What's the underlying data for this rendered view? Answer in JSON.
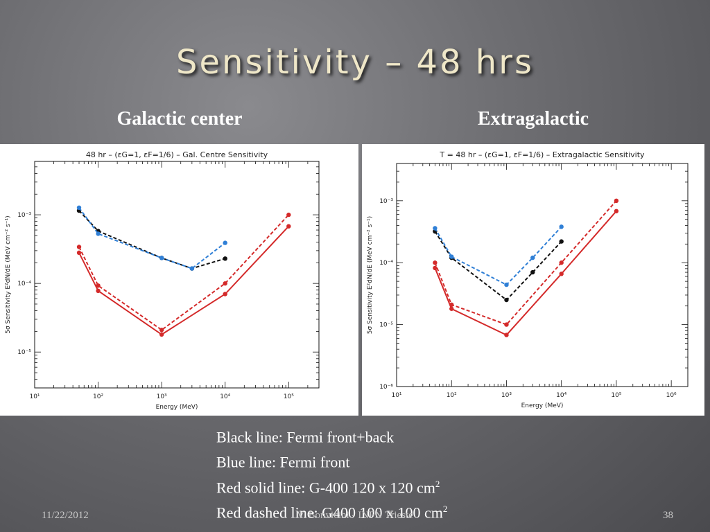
{
  "slide": {
    "title": "Sensitivity – 48 hrs",
    "left_heading": "Galactic center",
    "right_heading": "Extragalactic",
    "legend_lines": [
      {
        "text": "Black line: Fermi front+back",
        "sup": ""
      },
      {
        "text": "Blue line: Fermi front",
        "sup": ""
      },
      {
        "text": "Red solid line: G-400 120 x 120 cm",
        "sup": "2"
      },
      {
        "text": "Red dashed line: G400 100 x 100 cm",
        "sup": "2"
      }
    ],
    "footer": {
      "date": "11/22/2012",
      "author": "V. Bonvicini - INFN Trieste",
      "page": "38"
    }
  },
  "colors": {
    "black": "#111111",
    "blue": "#2f7fd6",
    "red": "#d42a2a"
  },
  "chart_data": [
    {
      "type": "line",
      "title": "48 hr – (εG=1, εF=1/6) – Gal. Centre Sensitivity",
      "xlabel": "Energy (MeV)",
      "ylabel": "5σ Sensitivity E²dN/dE (MeV cm⁻² s⁻¹)",
      "xscale": "log",
      "yscale": "log",
      "xlim": [
        10,
        300000
      ],
      "ylim": [
        3e-06,
        0.006
      ],
      "xticks": [
        {
          "v": 10,
          "label": "10¹"
        },
        {
          "v": 100,
          "label": "10²"
        },
        {
          "v": 1000,
          "label": "10³"
        },
        {
          "v": 10000,
          "label": "10⁴"
        },
        {
          "v": 100000,
          "label": "10⁵"
        }
      ],
      "yticks": [
        {
          "v": 1e-05,
          "label": "10⁻⁵"
        },
        {
          "v": 0.0001,
          "label": "10⁻⁴"
        },
        {
          "v": 0.001,
          "label": "10⁻³"
        }
      ],
      "series": [
        {
          "color": "black",
          "dash": true,
          "x": [
            50,
            100,
            1000,
            3000,
            10000
          ],
          "y": [
            0.00115,
            0.00058,
            0.000235,
            0.000165,
            0.00023
          ]
        },
        {
          "color": "blue",
          "dash": true,
          "x": [
            50,
            100,
            1000,
            3000,
            10000
          ],
          "y": [
            0.00127,
            0.00053,
            0.000235,
            0.000165,
            0.00039
          ]
        },
        {
          "color": "red",
          "dash": false,
          "x": [
            50,
            100,
            1000,
            10000,
            100000
          ],
          "y": [
            0.00028,
            7.8e-05,
            1.8e-05,
            7e-05,
            0.00068
          ]
        },
        {
          "color": "red",
          "dash": true,
          "x": [
            50,
            100,
            1000,
            10000,
            100000
          ],
          "y": [
            0.00034,
            9.3e-05,
            2.1e-05,
            0.0001,
            0.001
          ]
        }
      ]
    },
    {
      "type": "line",
      "title": "T = 48 hr – (εG=1, εF=1/6) – Extragalactic Sensitivity",
      "xlabel": "Energy (MeV)",
      "ylabel": "5σ Sensitivity E²dN/dE (MeV cm⁻² s⁻¹)",
      "xscale": "log",
      "yscale": "log",
      "xlim": [
        10,
        2000000
      ],
      "ylim": [
        1e-06,
        0.004
      ],
      "xticks": [
        {
          "v": 10,
          "label": "10¹"
        },
        {
          "v": 100,
          "label": "10²"
        },
        {
          "v": 1000,
          "label": "10³"
        },
        {
          "v": 10000,
          "label": "10⁴"
        },
        {
          "v": 100000,
          "label": "10⁵"
        },
        {
          "v": 1000000,
          "label": "10⁶"
        }
      ],
      "yticks": [
        {
          "v": 1e-06,
          "label": "10⁻⁶"
        },
        {
          "v": 1e-05,
          "label": "10⁻⁵"
        },
        {
          "v": 0.0001,
          "label": "10⁻⁴"
        },
        {
          "v": 0.001,
          "label": "10⁻³"
        }
      ],
      "series": [
        {
          "color": "black",
          "dash": true,
          "x": [
            50,
            100,
            1000,
            3000,
            10000
          ],
          "y": [
            0.00032,
            0.00012,
            2.5e-05,
            7e-05,
            0.00022
          ]
        },
        {
          "color": "blue",
          "dash": true,
          "x": [
            50,
            100,
            1000,
            3000,
            10000
          ],
          "y": [
            0.00036,
            0.000125,
            4.4e-05,
            0.00012,
            0.00038
          ]
        },
        {
          "color": "red",
          "dash": false,
          "x": [
            50,
            100,
            1000,
            10000,
            100000
          ],
          "y": [
            8.2e-05,
            1.8e-05,
            6.8e-06,
            6.6e-05,
            0.00068
          ]
        },
        {
          "color": "red",
          "dash": true,
          "x": [
            50,
            100,
            1000,
            10000,
            100000
          ],
          "y": [
            0.0001,
            2.1e-05,
            1e-05,
            0.0001,
            0.001
          ]
        }
      ]
    }
  ]
}
